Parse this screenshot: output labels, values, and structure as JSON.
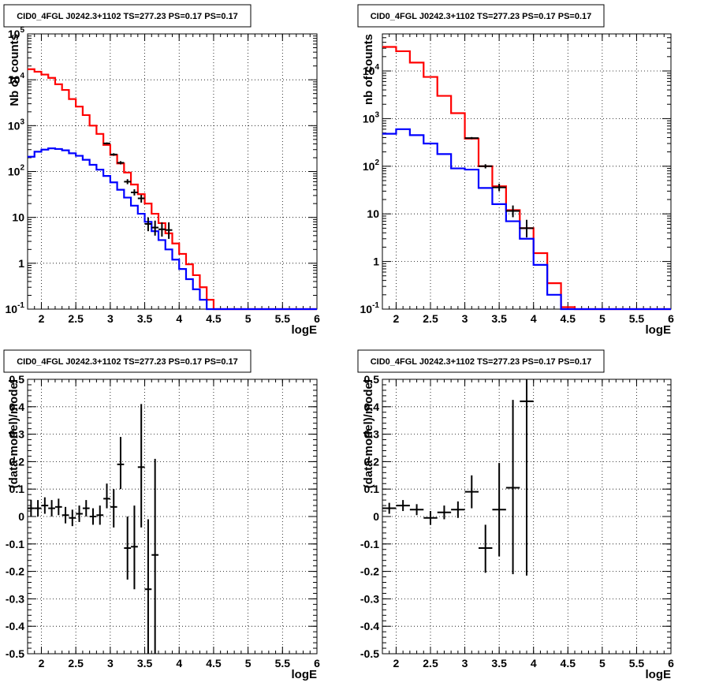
{
  "chart_data": [
    {
      "type": "line",
      "scale": "log",
      "title": "CID0_4FGL J0242.3+1102 TS=277.23 PS=0.17 PS=0.17",
      "xlabel": "logE",
      "ylabel": "Nb of counts",
      "xlim": [
        1.8,
        6.0
      ],
      "ylim": [
        0.1,
        100000
      ],
      "x_ticks": [
        "2",
        "2.5",
        "3",
        "3.5",
        "4",
        "4.5",
        "5",
        "5.5",
        "6"
      ],
      "y_ticks": [
        "10^{-1}",
        "1",
        "10",
        "10^{2}",
        "10^{3}",
        "10^{4}",
        "10^{5}"
      ],
      "grid": true,
      "bin_edges": [
        1.8,
        1.9,
        2.0,
        2.1,
        2.2,
        2.3,
        2.4,
        2.5,
        2.6,
        2.7,
        2.8,
        2.9,
        3.0,
        3.1,
        3.2,
        3.3,
        3.4,
        3.5,
        3.6,
        3.7,
        3.8,
        3.9,
        4.0,
        4.1,
        4.2,
        4.3,
        4.4,
        4.5,
        4.6,
        4.7,
        4.8,
        4.9,
        5.0,
        5.1,
        5.2,
        5.3,
        5.4,
        5.5,
        5.6,
        5.7,
        5.8,
        5.9,
        6.0
      ],
      "series": [
        {
          "color": "#ff0000",
          "values": [
            17000,
            15000,
            13000,
            11000,
            8000,
            6000,
            3800,
            2600,
            1700,
            1000,
            660,
            380,
            230,
            150,
            95,
            52,
            32,
            20,
            12,
            7.5,
            4.5,
            2.7,
            1.6,
            0.95,
            0.55,
            0.3,
            0.16,
            0.1,
            0.1,
            0.1,
            0.1,
            0.1,
            0.1,
            0.1,
            0.1,
            0.1,
            0.1,
            0.1,
            0.1,
            0.1,
            0.1,
            0.1
          ]
        },
        {
          "color": "#0000ff",
          "values": [
            210,
            270,
            300,
            320,
            310,
            290,
            250,
            220,
            180,
            140,
            110,
            80,
            58,
            40,
            27,
            18,
            12,
            8,
            5,
            3.2,
            2,
            1.2,
            0.75,
            0.45,
            0.27,
            0.16,
            0.1,
            0.1,
            0.1,
            0.1,
            0.1,
            0.1,
            0.1,
            0.1,
            0.1,
            0.1,
            0.1,
            0.1,
            0.1,
            0.1,
            0.1,
            0.1
          ]
        }
      ],
      "points": [
        {
          "x": 2.95,
          "y": 410,
          "xerr": 0.05,
          "ylo": 390,
          "yhi": 430
        },
        {
          "x": 3.05,
          "y": 235,
          "xerr": 0.05,
          "ylo": 220,
          "yhi": 250
        },
        {
          "x": 3.15,
          "y": 155,
          "xerr": 0.05,
          "ylo": 143,
          "yhi": 168
        },
        {
          "x": 3.25,
          "y": 60,
          "xerr": 0.05,
          "ylo": 53,
          "yhi": 68
        },
        {
          "x": 3.35,
          "y": 35,
          "xerr": 0.05,
          "ylo": 30,
          "yhi": 41
        },
        {
          "x": 3.45,
          "y": 26,
          "xerr": 0.05,
          "ylo": 21,
          "yhi": 31
        },
        {
          "x": 3.55,
          "y": 7.2,
          "xerr": 0.05,
          "ylo": 5,
          "yhi": 10
        },
        {
          "x": 3.65,
          "y": 6,
          "xerr": 0.05,
          "ylo": 4,
          "yhi": 8.5
        },
        {
          "x": 3.75,
          "y": 5.5,
          "xerr": 0.05,
          "ylo": 3.8,
          "yhi": 7.8
        },
        {
          "x": 3.85,
          "y": 5.3,
          "xerr": 0.05,
          "ylo": 3.4,
          "yhi": 7.8
        }
      ]
    },
    {
      "type": "line",
      "scale": "log",
      "title": "CID0_4FGL J0242.3+1102 TS=277.23 PS=0.17 PS=0.17",
      "xlabel": "logE",
      "ylabel": "nb of counts",
      "xlim": [
        1.8,
        6.0
      ],
      "ylim": [
        0.1,
        60000
      ],
      "x_ticks": [
        "2",
        "2.5",
        "3",
        "3.5",
        "4",
        "4.5",
        "5",
        "5.5",
        "6"
      ],
      "y_ticks": [
        "10^{-1}",
        "1",
        "10",
        "10^{2}",
        "10^{3}",
        "10^{4}"
      ],
      "grid": true,
      "bin_edges": [
        1.8,
        2.0,
        2.2,
        2.4,
        2.6,
        2.8,
        3.0,
        3.2,
        3.4,
        3.6,
        3.8,
        4.0,
        4.2,
        4.4,
        4.6,
        4.8,
        5.0,
        5.2,
        5.4,
        5.6,
        5.8,
        6.0
      ],
      "series": [
        {
          "color": "#ff0000",
          "values": [
            32000,
            26000,
            15000,
            7500,
            3000,
            1300,
            380,
            100,
            38,
            12,
            5,
            1.5,
            0.35,
            0.11,
            0.1,
            0.1,
            0.1,
            0.1,
            0.1,
            0.1,
            0.1
          ]
        },
        {
          "color": "#0000ff",
          "values": [
            480,
            600,
            450,
            300,
            180,
            90,
            85,
            35,
            16,
            7,
            3,
            0.85,
            0.2,
            0.1,
            0.1,
            0.1,
            0.1,
            0.1,
            0.1,
            0.1,
            0.1
          ]
        }
      ],
      "points": [
        {
          "x": 3.1,
          "y": 390,
          "xerr": 0.1,
          "ylo": 370,
          "yhi": 410
        },
        {
          "x": 3.3,
          "y": 100,
          "xerr": 0.1,
          "ylo": 90,
          "yhi": 110
        },
        {
          "x": 3.5,
          "y": 36,
          "xerr": 0.1,
          "ylo": 30,
          "yhi": 43
        },
        {
          "x": 3.7,
          "y": 11.5,
          "xerr": 0.1,
          "ylo": 8.5,
          "yhi": 15
        },
        {
          "x": 3.9,
          "y": 5,
          "xerr": 0.1,
          "ylo": 3.2,
          "yhi": 7.5
        }
      ]
    },
    {
      "type": "scatter",
      "scale": "linear",
      "title": "CID0_4FGL J0242.3+1102 TS=277.23 PS=0.17 PS=0.17",
      "xlabel": "logE",
      "ylabel": "(data-model)/model",
      "xlim": [
        1.8,
        6.0
      ],
      "ylim": [
        -0.5,
        0.5
      ],
      "x_ticks": [
        "2",
        "2.5",
        "3",
        "3.5",
        "4",
        "4.5",
        "5",
        "5.5",
        "6"
      ],
      "y_ticks": [
        "-0.5",
        "-0.4",
        "-0.3",
        "-0.2",
        "-0.1",
        "0",
        "0.1",
        "0.2",
        "0.3",
        "0.4",
        "0.5"
      ],
      "grid": true,
      "points": [
        {
          "x": 1.85,
          "y": 0.03,
          "xerr": 0.05,
          "ylo": 0.0,
          "yhi": 0.06
        },
        {
          "x": 1.95,
          "y": 0.03,
          "xerr": 0.05,
          "ylo": 0.0,
          "yhi": 0.06
        },
        {
          "x": 2.05,
          "y": 0.04,
          "xerr": 0.05,
          "ylo": 0.01,
          "yhi": 0.07
        },
        {
          "x": 2.15,
          "y": 0.03,
          "xerr": 0.05,
          "ylo": 0.0,
          "yhi": 0.06
        },
        {
          "x": 2.25,
          "y": 0.035,
          "xerr": 0.05,
          "ylo": 0.005,
          "yhi": 0.065
        },
        {
          "x": 2.35,
          "y": 0.005,
          "xerr": 0.05,
          "ylo": -0.025,
          "yhi": 0.035
        },
        {
          "x": 2.45,
          "y": -0.005,
          "xerr": 0.05,
          "ylo": -0.035,
          "yhi": 0.025
        },
        {
          "x": 2.55,
          "y": 0.01,
          "xerr": 0.05,
          "ylo": -0.02,
          "yhi": 0.04
        },
        {
          "x": 2.65,
          "y": 0.03,
          "xerr": 0.05,
          "ylo": 0.0,
          "yhi": 0.06
        },
        {
          "x": 2.75,
          "y": 0.0,
          "xerr": 0.05,
          "ylo": -0.03,
          "yhi": 0.03
        },
        {
          "x": 2.85,
          "y": 0.005,
          "xerr": 0.05,
          "ylo": -0.03,
          "yhi": 0.04
        },
        {
          "x": 2.95,
          "y": 0.065,
          "xerr": 0.05,
          "ylo": 0.03,
          "yhi": 0.12
        },
        {
          "x": 3.05,
          "y": 0.035,
          "xerr": 0.05,
          "ylo": -0.04,
          "yhi": 0.1
        },
        {
          "x": 3.15,
          "y": 0.19,
          "xerr": 0.05,
          "ylo": 0.1,
          "yhi": 0.29
        },
        {
          "x": 3.25,
          "y": -0.115,
          "xerr": 0.05,
          "ylo": -0.23,
          "yhi": 0.0
        },
        {
          "x": 3.35,
          "y": -0.11,
          "xerr": 0.05,
          "ylo": -0.265,
          "yhi": 0.04
        },
        {
          "x": 3.45,
          "y": 0.18,
          "xerr": 0.05,
          "ylo": -0.04,
          "yhi": 0.41
        },
        {
          "x": 3.55,
          "y": -0.265,
          "xerr": 0.05,
          "ylo": -0.55,
          "yhi": -0.01
        },
        {
          "x": 3.65,
          "y": -0.14,
          "xerr": 0.05,
          "ylo": -0.5,
          "yhi": 0.21
        }
      ]
    },
    {
      "type": "scatter",
      "scale": "linear",
      "title": "CID0_4FGL J0242.3+1102 TS=277.23 PS=0.17 PS=0.17",
      "xlabel": "logE",
      "ylabel": "(data-model)/model",
      "xlim": [
        1.8,
        6.0
      ],
      "ylim": [
        -0.5,
        0.5
      ],
      "x_ticks": [
        "2",
        "2.5",
        "3",
        "3.5",
        "4",
        "4.5",
        "5",
        "5.5",
        "6"
      ],
      "y_ticks": [
        "-0.5",
        "-0.4",
        "-0.3",
        "-0.2",
        "-0.1",
        "0",
        "0.1",
        "0.2",
        "0.3",
        "0.4",
        "0.5"
      ],
      "grid": true,
      "points": [
        {
          "x": 1.9,
          "y": 0.03,
          "xerr": 0.1,
          "ylo": 0.01,
          "yhi": 0.05
        },
        {
          "x": 2.1,
          "y": 0.04,
          "xerr": 0.1,
          "ylo": 0.02,
          "yhi": 0.06
        },
        {
          "x": 2.3,
          "y": 0.025,
          "xerr": 0.1,
          "ylo": 0.005,
          "yhi": 0.045
        },
        {
          "x": 2.5,
          "y": -0.005,
          "xerr": 0.1,
          "ylo": -0.03,
          "yhi": 0.02
        },
        {
          "x": 2.7,
          "y": 0.015,
          "xerr": 0.1,
          "ylo": -0.01,
          "yhi": 0.04
        },
        {
          "x": 2.9,
          "y": 0.025,
          "xerr": 0.1,
          "ylo": -0.005,
          "yhi": 0.055
        },
        {
          "x": 3.1,
          "y": 0.09,
          "xerr": 0.1,
          "ylo": 0.03,
          "yhi": 0.15
        },
        {
          "x": 3.3,
          "y": -0.115,
          "xerr": 0.1,
          "ylo": -0.205,
          "yhi": -0.03
        },
        {
          "x": 3.5,
          "y": 0.025,
          "xerr": 0.1,
          "ylo": -0.145,
          "yhi": 0.195
        },
        {
          "x": 3.7,
          "y": 0.105,
          "xerr": 0.1,
          "ylo": -0.21,
          "yhi": 0.425
        },
        {
          "x": 3.9,
          "y": 0.42,
          "xerr": 0.1,
          "ylo": -0.215,
          "yhi": 0.5
        }
      ]
    }
  ]
}
